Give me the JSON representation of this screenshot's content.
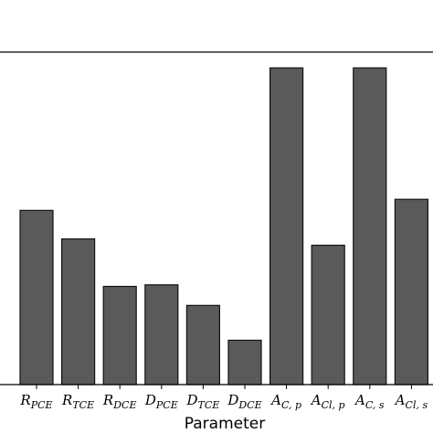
{
  "chart_data": {
    "type": "bar",
    "xlabel": "Parameter",
    "ylabel": "",
    "ylim": [
      0,
      1.05
    ],
    "bar_color": "#5a5a5a",
    "edge_color": "#111111",
    "categories": [
      {
        "main": "R",
        "sub": "PCE"
      },
      {
        "main": "R",
        "sub": "TCE"
      },
      {
        "main": "R",
        "sub": "DCE"
      },
      {
        "main": "D",
        "sub": "PCE"
      },
      {
        "main": "D",
        "sub": "TCE"
      },
      {
        "main": "D",
        "sub": "DCE"
      },
      {
        "main": "A",
        "sub": "C, p"
      },
      {
        "main": "A",
        "sub": "Cl, p"
      },
      {
        "main": "A",
        "sub": "C, s"
      },
      {
        "main": "A",
        "sub": "Cl, s"
      }
    ],
    "values": [
      0.55,
      0.46,
      0.31,
      0.315,
      0.25,
      0.14,
      1.0,
      0.44,
      1.0,
      0.585
    ]
  }
}
